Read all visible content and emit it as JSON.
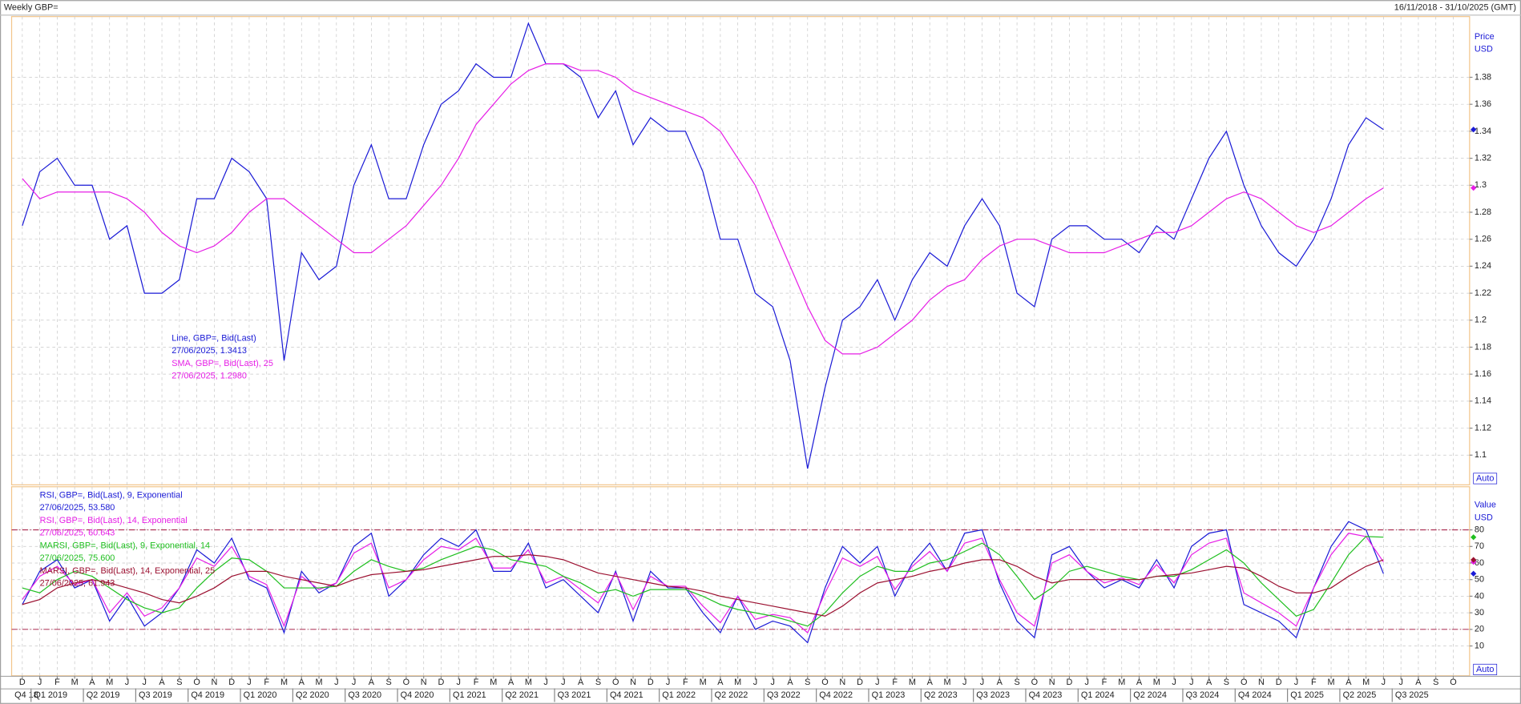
{
  "chart_data": [
    {
      "type": "line",
      "title": "Weekly GBP=",
      "subtitle": "16/11/2018 - 31/10/2025 (GMT)",
      "axis_labels": [
        "Price",
        "USD"
      ],
      "scale_mode": "Auto",
      "grid": true,
      "ylim": [
        1.078,
        1.425
      ],
      "yticks": [
        1.1,
        1.12,
        1.14,
        1.16,
        1.18,
        1.2,
        1.22,
        1.24,
        1.26,
        1.28,
        1.3,
        1.32,
        1.34,
        1.36,
        1.38
      ],
      "series": [
        {
          "name": "Line, GBP=, Bid(Last)",
          "last_label": "27/06/2025, 1.3413",
          "color": "#1a1ad6",
          "values": [
            1.27,
            1.31,
            1.32,
            1.3,
            1.3,
            1.26,
            1.27,
            1.22,
            1.22,
            1.23,
            1.29,
            1.29,
            1.32,
            1.31,
            1.29,
            1.17,
            1.25,
            1.23,
            1.24,
            1.3,
            1.33,
            1.29,
            1.29,
            1.33,
            1.36,
            1.37,
            1.39,
            1.38,
            1.38,
            1.42,
            1.39,
            1.39,
            1.38,
            1.35,
            1.37,
            1.33,
            1.35,
            1.34,
            1.34,
            1.31,
            1.26,
            1.26,
            1.22,
            1.21,
            1.17,
            1.09,
            1.15,
            1.2,
            1.21,
            1.23,
            1.2,
            1.23,
            1.25,
            1.24,
            1.27,
            1.29,
            1.27,
            1.22,
            1.21,
            1.26,
            1.27,
            1.27,
            1.26,
            1.26,
            1.25,
            1.27,
            1.26,
            1.29,
            1.32,
            1.34,
            1.3,
            1.27,
            1.25,
            1.24,
            1.26,
            1.29,
            1.33,
            1.35,
            1.3413,
            null,
            null,
            null,
            null
          ]
        },
        {
          "name": "SMA, GBP=, Bid(Last),  25",
          "last_label": "27/06/2025, 1.2980",
          "color": "#e61ee6",
          "values": [
            1.305,
            1.29,
            1.295,
            1.295,
            1.295,
            1.295,
            1.29,
            1.28,
            1.265,
            1.255,
            1.25,
            1.255,
            1.265,
            1.28,
            1.29,
            1.29,
            1.28,
            1.27,
            1.26,
            1.25,
            1.25,
            1.26,
            1.27,
            1.285,
            1.3,
            1.32,
            1.345,
            1.36,
            1.375,
            1.385,
            1.39,
            1.39,
            1.385,
            1.385,
            1.38,
            1.37,
            1.365,
            1.36,
            1.355,
            1.35,
            1.34,
            1.32,
            1.3,
            1.27,
            1.24,
            1.21,
            1.185,
            1.175,
            1.175,
            1.18,
            1.19,
            1.2,
            1.215,
            1.225,
            1.23,
            1.245,
            1.255,
            1.26,
            1.26,
            1.255,
            1.25,
            1.25,
            1.25,
            1.255,
            1.26,
            1.265,
            1.265,
            1.27,
            1.28,
            1.29,
            1.295,
            1.29,
            1.28,
            1.27,
            1.265,
            1.27,
            1.28,
            1.29,
            1.298,
            null,
            null,
            null,
            null
          ]
        }
      ]
    },
    {
      "type": "line",
      "axis_labels": [
        "Value",
        "USD"
      ],
      "scale_mode": "Auto",
      "grid": true,
      "ylim": [
        -8,
        106
      ],
      "yticks": [
        10,
        20,
        30,
        40,
        50,
        60,
        70,
        80
      ],
      "reference_lines": [
        80,
        20
      ],
      "categories": [
        "D",
        "J",
        "F",
        "M",
        "A",
        "M",
        "J",
        "J",
        "A",
        "S",
        "O",
        "N",
        "D",
        "J",
        "F",
        "M",
        "A",
        "M",
        "J",
        "J",
        "A",
        "S",
        "O",
        "N",
        "D",
        "J",
        "F",
        "M",
        "A",
        "M",
        "J",
        "J",
        "A",
        "S",
        "O",
        "N",
        "D",
        "J",
        "F",
        "M",
        "A",
        "M",
        "J",
        "J",
        "A",
        "S",
        "O",
        "N",
        "D",
        "J",
        "F",
        "M",
        "A",
        "M",
        "J",
        "J",
        "A",
        "S",
        "O",
        "N",
        "D",
        "J",
        "F",
        "M",
        "A",
        "M",
        "J",
        "J",
        "A",
        "S",
        "O",
        "N",
        "D",
        "J",
        "F",
        "M",
        "A",
        "M",
        "J",
        "J",
        "A",
        "S",
        "O"
      ],
      "quarters": [
        "Q4 18",
        "Q1 2019",
        "Q2 2019",
        "Q3 2019",
        "Q4 2019",
        "Q1 2020",
        "Q2 2020",
        "Q3 2020",
        "Q4 2020",
        "Q1 2021",
        "Q2 2021",
        "Q3 2021",
        "Q4 2021",
        "Q1 2022",
        "Q2 2022",
        "Q3 2022",
        "Q4 2022",
        "Q1 2023",
        "Q2 2023",
        "Q3 2023",
        "Q4 2023",
        "Q1 2024",
        "Q2 2024",
        "Q3 2024",
        "Q4 2024",
        "Q1 2025",
        "Q2 2025",
        "Q3 2025"
      ],
      "series": [
        {
          "name": "RSI, GBP=, Bid(Last),  9, Exponential",
          "last_label": "27/06/2025, 53.580",
          "color": "#1a1ad6",
          "values": [
            35,
            55,
            62,
            45,
            50,
            25,
            40,
            22,
            30,
            45,
            68,
            60,
            75,
            50,
            45,
            18,
            55,
            42,
            48,
            70,
            78,
            40,
            50,
            65,
            75,
            70,
            80,
            55,
            55,
            72,
            45,
            50,
            40,
            30,
            55,
            25,
            55,
            45,
            45,
            30,
            18,
            40,
            20,
            25,
            22,
            12,
            45,
            70,
            60,
            70,
            40,
            60,
            72,
            55,
            78,
            80,
            48,
            25,
            15,
            65,
            70,
            55,
            45,
            50,
            45,
            62,
            45,
            70,
            78,
            80,
            35,
            30,
            25,
            15,
            45,
            70,
            85,
            80,
            53.58,
            null,
            null,
            null,
            null
          ]
        },
        {
          "name": "RSI, GBP=, Bid(Last),  14, Exponential",
          "last_label": "27/06/2025, 60.643",
          "color": "#e61ee6",
          "values": [
            38,
            52,
            58,
            47,
            50,
            30,
            42,
            28,
            33,
            45,
            63,
            58,
            70,
            52,
            47,
            22,
            52,
            44,
            48,
            66,
            72,
            45,
            50,
            62,
            70,
            68,
            75,
            57,
            57,
            68,
            48,
            52,
            44,
            36,
            54,
            32,
            52,
            46,
            46,
            34,
            24,
            40,
            26,
            29,
            27,
            18,
            42,
            63,
            58,
            64,
            44,
            58,
            67,
            55,
            72,
            75,
            50,
            30,
            22,
            60,
            65,
            55,
            48,
            51,
            47,
            59,
            48,
            65,
            72,
            75,
            42,
            36,
            30,
            22,
            45,
            65,
            78,
            76,
            60.643,
            null,
            null,
            null,
            null
          ]
        },
        {
          "name": "MARSI, GBP=, Bid(Last),  9, Exponential, 14",
          "last_label": "27/06/2025, 75.600",
          "color": "#1fbf1f",
          "values": [
            45,
            42,
            50,
            55,
            52,
            45,
            38,
            33,
            30,
            33,
            45,
            55,
            63,
            62,
            55,
            45,
            45,
            45,
            46,
            55,
            62,
            58,
            55,
            57,
            62,
            66,
            70,
            68,
            62,
            60,
            58,
            52,
            48,
            42,
            44,
            40,
            44,
            44,
            44,
            40,
            35,
            32,
            30,
            28,
            25,
            22,
            30,
            42,
            52,
            58,
            55,
            55,
            60,
            62,
            67,
            72,
            65,
            52,
            38,
            45,
            55,
            58,
            55,
            52,
            50,
            52,
            52,
            56,
            62,
            68,
            60,
            48,
            38,
            28,
            32,
            48,
            65,
            76,
            75.6,
            null,
            null,
            null,
            null
          ]
        },
        {
          "name": "MARSI, GBP=, Bid(Last),  14, Exponential, 25",
          "last_label": "27/06/2025, 61.943",
          "color": "#9b1030",
          "values": [
            35,
            38,
            45,
            48,
            50,
            48,
            45,
            42,
            38,
            36,
            40,
            45,
            52,
            55,
            55,
            52,
            50,
            48,
            46,
            50,
            53,
            54,
            55,
            56,
            58,
            60,
            62,
            64,
            64,
            65,
            64,
            62,
            58,
            54,
            52,
            50,
            48,
            46,
            45,
            43,
            40,
            38,
            36,
            34,
            32,
            30,
            28,
            34,
            42,
            48,
            50,
            52,
            55,
            57,
            60,
            62,
            62,
            58,
            52,
            48,
            50,
            50,
            50,
            50,
            50,
            52,
            53,
            54,
            56,
            58,
            57,
            52,
            46,
            42,
            42,
            45,
            52,
            58,
            61.943,
            null,
            null,
            null,
            null
          ]
        }
      ]
    }
  ]
}
